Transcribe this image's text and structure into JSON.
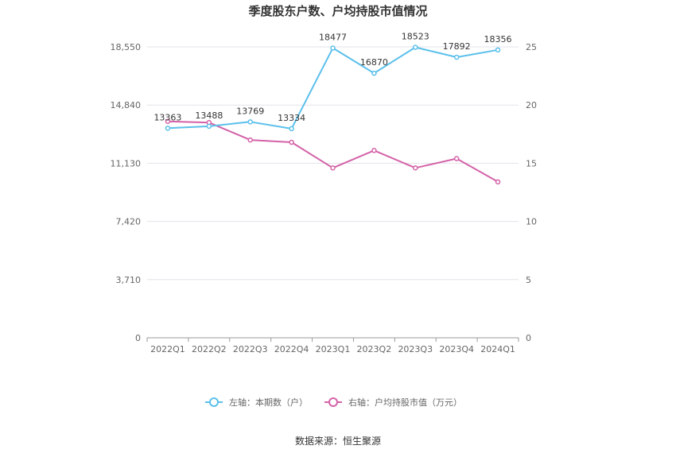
{
  "chart_data": {
    "type": "line",
    "title": "季度股东户数、户均持股市值情况",
    "categories": [
      "2022Q1",
      "2022Q2",
      "2022Q3",
      "2022Q4",
      "2023Q1",
      "2023Q2",
      "2023Q3",
      "2023Q4",
      "2024Q1"
    ],
    "left_axis": {
      "ticks": [
        "0",
        "3,710",
        "7,420",
        "11,130",
        "14,840",
        "18,550"
      ],
      "min": 0,
      "max": 18550
    },
    "right_axis": {
      "ticks": [
        "0",
        "5",
        "10",
        "15",
        "20",
        "25"
      ],
      "min": 0,
      "max": 25
    },
    "series": [
      {
        "name": "左轴：本期数（户）",
        "axis": "left",
        "color": "#5bc0eb",
        "values": [
          13363,
          13488,
          13769,
          13334,
          18477,
          16870,
          18523,
          17892,
          18356
        ],
        "labels": [
          "13363",
          "13488",
          "13769",
          "13334",
          "18477",
          "16870",
          "18523",
          "17892",
          "18356"
        ]
      },
      {
        "name": "右轴：户均持股市值（万元）",
        "axis": "right",
        "color": "#d462a8",
        "values": [
          18.6,
          18.5,
          17.0,
          16.8,
          14.6,
          16.1,
          14.6,
          15.4,
          13.4
        ]
      }
    ],
    "grid": true,
    "legend_position": "bottom"
  },
  "source": "数据来源：恒生聚源"
}
